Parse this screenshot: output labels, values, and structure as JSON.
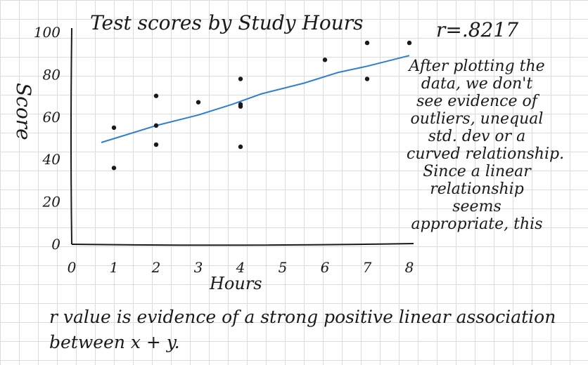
{
  "chart_data": {
    "type": "scatter",
    "title": "Test scores by Study Hours",
    "xlabel": "Hours",
    "ylabel": "Score",
    "xlim": [
      0,
      8
    ],
    "ylim": [
      0,
      100
    ],
    "x_ticks": [
      "0",
      "1",
      "2",
      "3",
      "4",
      "5",
      "6",
      "7",
      "8"
    ],
    "y_ticks": [
      "0",
      "20",
      "40",
      "60",
      "80",
      "100"
    ],
    "points": [
      {
        "x": 1,
        "y": 36
      },
      {
        "x": 1,
        "y": 55
      },
      {
        "x": 2,
        "y": 47
      },
      {
        "x": 2,
        "y": 56
      },
      {
        "x": 2,
        "y": 70
      },
      {
        "x": 3,
        "y": 67
      },
      {
        "x": 4,
        "y": 46
      },
      {
        "x": 4,
        "y": 65
      },
      {
        "x": 4,
        "y": 66
      },
      {
        "x": 4,
        "y": 78
      },
      {
        "x": 6,
        "y": 87
      },
      {
        "x": 7,
        "y": 78
      },
      {
        "x": 7,
        "y": 95
      },
      {
        "x": 8,
        "y": 95
      }
    ],
    "trend_line": {
      "color": "#2a7fd4",
      "points": [
        {
          "x": 0.7,
          "y": 48
        },
        {
          "x": 2,
          "y": 56
        },
        {
          "x": 3,
          "y": 61
        },
        {
          "x": 3.8,
          "y": 66
        },
        {
          "x": 4.5,
          "y": 71
        },
        {
          "x": 5.5,
          "y": 76
        },
        {
          "x": 6.3,
          "y": 81
        },
        {
          "x": 7,
          "y": 84
        },
        {
          "x": 8,
          "y": 89
        }
      ]
    },
    "point_color": "#1a1a1a",
    "grid": false
  },
  "annotations": {
    "r_value": "r=.8217",
    "notes": [
      "After plotting the",
      "data, we don't",
      "see evidence of",
      "outliers, unequal",
      "std. dev or a",
      "curved relationship.",
      "Since a linear",
      "relationship",
      "seems",
      "appropriate, this"
    ],
    "conclusion": [
      "r value is evidence of a strong positive linear association",
      "between x + y."
    ]
  }
}
